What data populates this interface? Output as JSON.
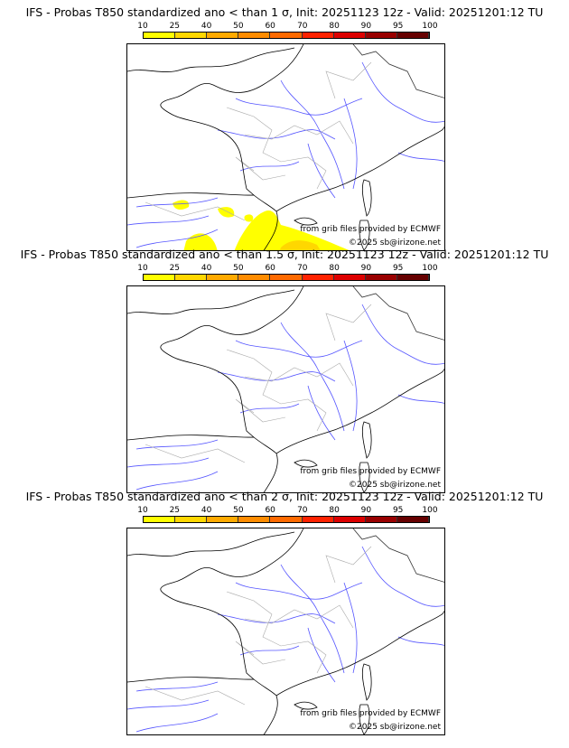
{
  "panels": [
    {
      "title": "IFS - Probas T850  standardized ano < than 1 σ, Init: 20251123 12z - Valid: 20251201:12 TU",
      "has_signal": true
    },
    {
      "title": "IFS - Probas T850  standardized ano < than 1.5 σ, Init: 20251123 12z - Valid: 20251201:12 TU",
      "has_signal": false
    },
    {
      "title": "IFS - Probas T850  standardized ano < than 2 σ, Init: 20251123 12z - Valid: 20251201:12 TU",
      "has_signal": false
    }
  ],
  "colorbar": {
    "ticks": [
      "10",
      "25",
      "40",
      "50",
      "60",
      "70",
      "80",
      "90",
      "95",
      "100"
    ],
    "colors": [
      "#ffff00",
      "#ffd700",
      "#ffaa00",
      "#ff8c00",
      "#ff6a00",
      "#ff2200",
      "#dd0000",
      "#990000",
      "#660000"
    ]
  },
  "credits": {
    "source": "from grib files provided by ECMWF",
    "copyright": "©2025 sb@irizone.net"
  }
}
